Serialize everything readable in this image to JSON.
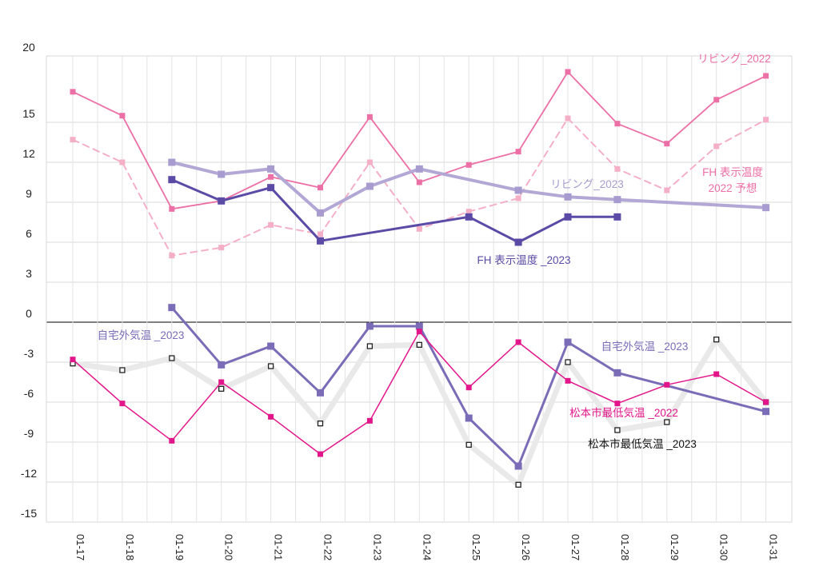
{
  "chart_data": {
    "type": "line",
    "x": [
      "01-17",
      "01-18",
      "01-19",
      "01-20",
      "01-21",
      "01-22",
      "01-23",
      "01-24",
      "01-25",
      "01-26",
      "01-27",
      "01-28",
      "01-29",
      "01-30",
      "01-31"
    ],
    "yticks": [
      "20",
      "15",
      "12",
      "9",
      "6",
      "3",
      "0",
      "-3",
      "-6",
      "-9",
      "-12",
      "-15"
    ],
    "series": [
      {
        "name": "リビング_2022",
        "color": "#ec6fa6",
        "style": "solid",
        "width": 1.8,
        "marker": "square-filled",
        "values": [
          17.3,
          15.5,
          8.5,
          9.1,
          10.9,
          10.1,
          15.4,
          10.5,
          11.8,
          12.8,
          18.8,
          14.9,
          13.4,
          16.7,
          18.5
        ]
      },
      {
        "name": "FH 表示温度\n2022 予想",
        "color": "#f4afc7",
        "style": "dashed",
        "width": 2,
        "marker": "square-filled",
        "values": [
          13.7,
          12.0,
          5.0,
          5.6,
          7.3,
          6.6,
          12.0,
          7.0,
          8.3,
          9.3,
          15.3,
          11.5,
          9.9,
          13.2,
          15.2
        ]
      },
      {
        "name": "リビング_2023",
        "color": "#b3a8d5",
        "style": "solid",
        "width": 4,
        "marker": "square-filled",
        "values": [
          null,
          null,
          12.0,
          11.1,
          11.5,
          8.2,
          10.2,
          11.5,
          null,
          9.9,
          9.4,
          9.2,
          null,
          null,
          8.6
        ]
      },
      {
        "name": "FH 表示温度 _2023",
        "color": "#5b4aa6",
        "style": "solid",
        "width": 3,
        "marker": "square-filled",
        "values": [
          null,
          null,
          10.7,
          9.1,
          10.1,
          6.1,
          null,
          null,
          7.9,
          6.0,
          7.9,
          7.9,
          null,
          null,
          null
        ]
      },
      {
        "name": "松本市最低気温 _2023",
        "color": "#e9e9e9",
        "style": "solid",
        "width": 7,
        "marker": "square-open",
        "values": [
          -3.1,
          -3.6,
          -2.7,
          -5.0,
          -3.3,
          -7.6,
          -1.8,
          -1.7,
          -9.2,
          -12.2,
          -3.0,
          -8.1,
          -7.5,
          -1.3,
          -6.0
        ]
      },
      {
        "name": "自宅外気温 _2023",
        "color": "#7b6cb8",
        "style": "solid",
        "width": 3,
        "marker": "square-filled",
        "values": [
          null,
          null,
          1.1,
          -3.2,
          -1.8,
          -5.3,
          -0.3,
          -0.3,
          -7.2,
          -10.8,
          -1.5,
          -3.8,
          null,
          null,
          -6.7
        ]
      },
      {
        "name": "松本市最低気温 _2022",
        "color": "#e2168a",
        "style": "solid",
        "width": 1.5,
        "marker": "square-filled",
        "values": [
          -2.8,
          -6.1,
          -8.9,
          -4.5,
          -7.1,
          -9.9,
          -7.4,
          -0.7,
          -4.9,
          -1.5,
          -4.4,
          -6.1,
          -4.7,
          -3.9,
          -6.0
        ]
      }
    ],
    "annotations": [
      {
        "text": "リビング_2022",
        "color": "#ec6fa6"
      },
      {
        "text": "リビング_2023",
        "color": "#a89bd0"
      },
      {
        "text": "FH 表示温度",
        "color": "#ec6fa6"
      },
      {
        "text": "2022 予想",
        "color": "#ec6fa6"
      },
      {
        "text": "FH 表示温度 _2023",
        "color": "#5b4aa6"
      },
      {
        "text": "自宅外気温 _2023",
        "color": "#7b6cb8"
      },
      {
        "text": "自宅外気温 _2023",
        "color": "#7b6cb8"
      },
      {
        "text": "松本市最低気温 _2022",
        "color": "#e2168a"
      },
      {
        "text": "松本市最低気温 _2023",
        "color": "#111111"
      }
    ],
    "grid": true,
    "xlabel": "",
    "ylabel": ""
  }
}
